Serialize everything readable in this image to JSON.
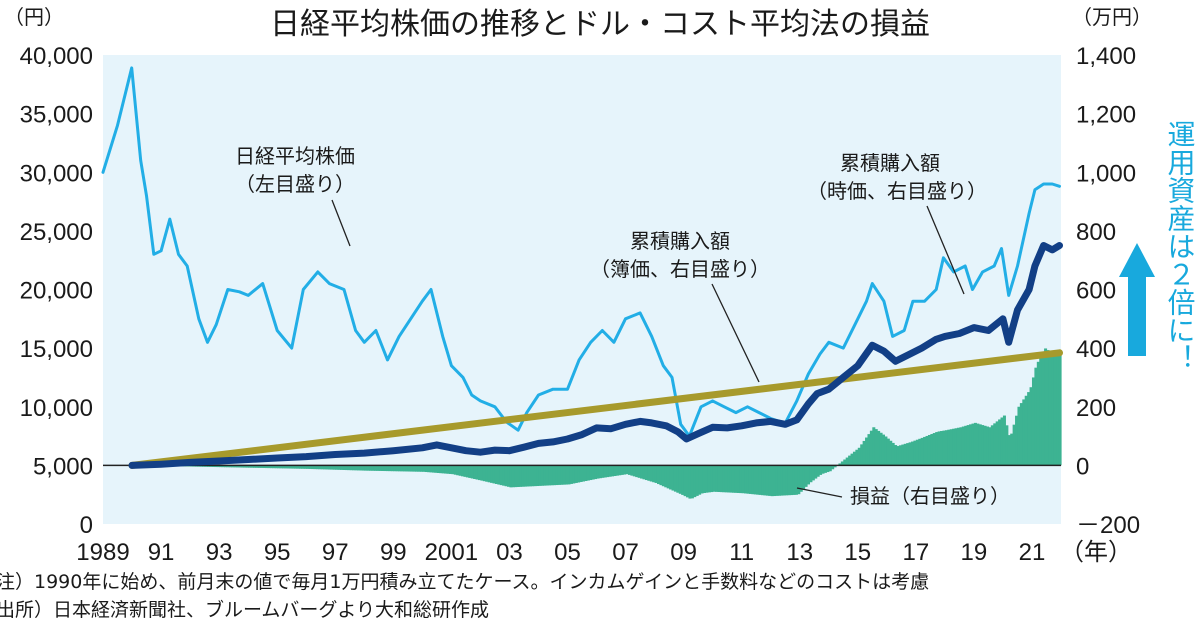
{
  "title": "日経平均株価の推移とドル・コスト平均法の損益",
  "left_unit": "（円）",
  "right_unit": "（万円）",
  "x_unit": "（年）",
  "notes": {
    "note1": "注）1990年に始め、前月末の値で毎月1万円積み立てたケース。インカムゲインと手数料などのコストは考慮",
    "note2": "出所）日本経済新聞社、ブルームバーグより大和総研作成"
  },
  "annotations": {
    "nikkei_line1": "日経平均株価",
    "nikkei_line2": "（左目盛り）",
    "book_line1": "累積購入額",
    "book_line2": "（簿価、右目盛り）",
    "market_line1": "累積購入額",
    "market_line2": "（時価、右目盛り）",
    "pl": "損益（右目盛り）",
    "vertical": "運用資産は２倍に！"
  },
  "colors": {
    "plot_bg": "#e6f4fb",
    "nikkei": "#22aee6",
    "market_value": "#123f86",
    "book_value": "#a79a2c",
    "profit_loss": "#3db392",
    "vertical_text": "#18a9dd"
  },
  "chart_data": {
    "type": "line",
    "title": "日経平均株価の推移とドル・コスト平均法の損益",
    "x_axis": {
      "label": "（年）",
      "range": [
        1989.0,
        2022.0
      ],
      "ticks": [
        {
          "value": 1989,
          "label": "1989"
        },
        {
          "value": 1991,
          "label": "91"
        },
        {
          "value": 1993,
          "label": "93"
        },
        {
          "value": 1995,
          "label": "95"
        },
        {
          "value": 1997,
          "label": "97"
        },
        {
          "value": 1999,
          "label": "99"
        },
        {
          "value": 2001,
          "label": "2001"
        },
        {
          "value": 2003,
          "label": "03"
        },
        {
          "value": 2005,
          "label": "05"
        },
        {
          "value": 2007,
          "label": "07"
        },
        {
          "value": 2009,
          "label": "09"
        },
        {
          "value": 2011,
          "label": "11"
        },
        {
          "value": 2013,
          "label": "13"
        },
        {
          "value": 2015,
          "label": "15"
        },
        {
          "value": 2017,
          "label": "17"
        },
        {
          "value": 2019,
          "label": "19"
        },
        {
          "value": 2021,
          "label": "21"
        }
      ]
    },
    "y_left": {
      "label": "（円）",
      "range": [
        0,
        40000
      ],
      "ticks": [
        {
          "value": 40000,
          "label": "40,000"
        },
        {
          "value": 35000,
          "label": "35,000"
        },
        {
          "value": 30000,
          "label": "30,000"
        },
        {
          "value": 25000,
          "label": "25,000"
        },
        {
          "value": 20000,
          "label": "20,000"
        },
        {
          "value": 15000,
          "label": "15,000"
        },
        {
          "value": 10000,
          "label": "10,000"
        },
        {
          "value": 5000,
          "label": "5,000"
        },
        {
          "value": 0,
          "label": "0"
        }
      ]
    },
    "y_right": {
      "label": "（万円）",
      "range": [
        -200,
        1400
      ],
      "ticks": [
        {
          "value": 1400,
          "label": "1,400"
        },
        {
          "value": 1200,
          "label": "1,200"
        },
        {
          "value": 1000,
          "label": "1,000"
        },
        {
          "value": 800,
          "label": "800"
        },
        {
          "value": 600,
          "label": "600"
        },
        {
          "value": 400,
          "label": "400"
        },
        {
          "value": 200,
          "label": "200"
        },
        {
          "value": 0,
          "label": "0"
        },
        {
          "value": -200,
          "label": "－200"
        }
      ]
    },
    "series": [
      {
        "name": "日経平均株価（左目盛り）",
        "axis": "left",
        "type": "line",
        "x": [
          1989.0,
          1989.5,
          1989.99,
          1990.3,
          1990.5,
          1990.75,
          1991.0,
          1991.3,
          1991.6,
          1991.9,
          1992.3,
          1992.6,
          1992.9,
          1993.3,
          1993.7,
          1994.0,
          1994.5,
          1995.0,
          1995.5,
          1995.9,
          1996.4,
          1996.8,
          1997.3,
          1997.7,
          1998.0,
          1998.4,
          1998.8,
          1999.2,
          1999.6,
          2000.0,
          2000.3,
          2000.7,
          2001.0,
          2001.4,
          2001.7,
          2002.0,
          2002.5,
          2002.9,
          2003.3,
          2003.6,
          2004.0,
          2004.5,
          2005.0,
          2005.4,
          2005.8,
          2006.2,
          2006.6,
          2007.0,
          2007.5,
          2007.9,
          2008.3,
          2008.6,
          2008.9,
          2009.2,
          2009.6,
          2010.0,
          2010.4,
          2010.8,
          2011.2,
          2011.6,
          2012.0,
          2012.5,
          2012.9,
          2013.3,
          2013.7,
          2014.0,
          2014.5,
          2014.9,
          2015.3,
          2015.5,
          2015.9,
          2016.2,
          2016.6,
          2016.9,
          2017.3,
          2017.7,
          2017.95,
          2018.3,
          2018.7,
          2018.95,
          2019.3,
          2019.7,
          2019.95,
          2020.2,
          2020.5,
          2020.9,
          2021.1,
          2021.4,
          2021.7,
          2021.95
        ],
        "y": [
          30000,
          34000,
          38900,
          31000,
          28000,
          23000,
          23300,
          26000,
          23000,
          22000,
          17500,
          15500,
          17000,
          20000,
          19800,
          19500,
          20500,
          16500,
          15000,
          20000,
          21500,
          20500,
          20000,
          16500,
          15500,
          16500,
          14000,
          16000,
          17500,
          19000,
          20000,
          16000,
          13500,
          12500,
          11000,
          10500,
          10000,
          8700,
          8000,
          9500,
          11000,
          11500,
          11500,
          14000,
          15500,
          16500,
          15500,
          17500,
          18000,
          16000,
          13500,
          12500,
          8500,
          7500,
          10000,
          10500,
          10000,
          9500,
          10000,
          9500,
          9000,
          8600,
          10500,
          12800,
          14500,
          15500,
          15000,
          17000,
          19000,
          20500,
          19000,
          16000,
          16500,
          19000,
          19000,
          20000,
          22700,
          21500,
          22000,
          20000,
          21500,
          22000,
          23500,
          19500,
          22000,
          26500,
          28500,
          29000,
          29000,
          28800
        ]
      },
      {
        "name": "累積購入額（簿価、右目盛り）",
        "axis": "right",
        "type": "line",
        "x": [
          1990.0,
          2021.95
        ],
        "y": [
          0,
          384
        ]
      },
      {
        "name": "累積購入額（時価、右目盛り）",
        "axis": "right",
        "type": "line",
        "x": [
          1990.0,
          1991.0,
          1992.0,
          1993.0,
          1994.0,
          1995.0,
          1996.0,
          1997.0,
          1998.0,
          1999.0,
          2000.0,
          2000.5,
          2001.0,
          2001.5,
          2002.0,
          2002.5,
          2003.0,
          2003.5,
          2004.0,
          2004.5,
          2005.0,
          2005.5,
          2006.0,
          2006.5,
          2007.0,
          2007.5,
          2007.9,
          2008.4,
          2008.8,
          2009.1,
          2009.5,
          2010.0,
          2010.5,
          2011.0,
          2011.5,
          2012.0,
          2012.5,
          2012.9,
          2013.3,
          2013.6,
          2014.0,
          2014.5,
          2015.0,
          2015.5,
          2015.9,
          2016.3,
          2016.8,
          2017.2,
          2017.7,
          2018.0,
          2018.5,
          2019.0,
          2019.5,
          2020.0,
          2020.2,
          2020.5,
          2020.9,
          2021.1,
          2021.4,
          2021.7,
          2021.95
        ],
        "y": [
          0,
          4,
          10,
          15,
          20,
          25,
          30,
          37,
          42,
          50,
          60,
          70,
          60,
          50,
          45,
          52,
          50,
          62,
          75,
          80,
          90,
          105,
          128,
          125,
          140,
          150,
          145,
          135,
          115,
          90,
          108,
          130,
          128,
          135,
          145,
          150,
          140,
          155,
          210,
          245,
          260,
          300,
          340,
          410,
          390,
          355,
          380,
          400,
          430,
          440,
          450,
          470,
          460,
          500,
          420,
          530,
          600,
          680,
          750,
          735,
          750
        ]
      },
      {
        "name": "損益（右目盛り）",
        "axis": "right",
        "type": "area",
        "x": [
          1990.0,
          1992.0,
          1994.0,
          1996.0,
          1998.0,
          2000.0,
          2001.0,
          2002.0,
          2003.0,
          2004.0,
          2005.0,
          2006.0,
          2007.0,
          2008.0,
          2008.9,
          2009.2,
          2009.6,
          2010.0,
          2011.0,
          2012.0,
          2012.9,
          2013.3,
          2013.7,
          2014.0,
          2014.5,
          2015.0,
          2015.5,
          2015.9,
          2016.3,
          2016.8,
          2017.2,
          2017.7,
          2018.0,
          2018.5,
          2019.0,
          2019.5,
          2020.0,
          2020.2,
          2020.5,
          2020.9,
          2021.1,
          2021.4,
          2021.7,
          2021.95
        ],
        "y": [
          0,
          -4,
          -8,
          -12,
          -18,
          -22,
          -30,
          -52,
          -75,
          -70,
          -65,
          -45,
          -30,
          -60,
          -100,
          -115,
          -95,
          -90,
          -95,
          -105,
          -100,
          -60,
          -30,
          -20,
          20,
          60,
          130,
          100,
          65,
          80,
          95,
          115,
          120,
          130,
          145,
          130,
          170,
          90,
          200,
          260,
          340,
          400,
          380,
          385
        ]
      }
    ]
  }
}
